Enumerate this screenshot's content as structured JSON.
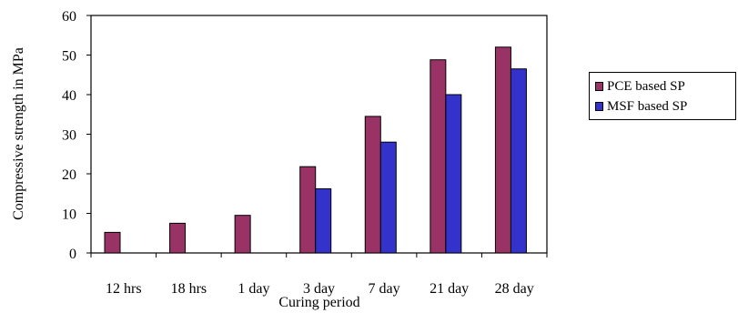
{
  "chart_data": {
    "type": "bar",
    "title": "",
    "xlabel": "Curing period",
    "ylabel": "Compressive strength in MPa",
    "ylim": [
      0,
      60
    ],
    "yticks": [
      "0",
      "10",
      "20",
      "30",
      "40",
      "50",
      "60"
    ],
    "categories": [
      "12 hrs",
      "18 hrs",
      "1 day",
      "3 day",
      "7 day",
      "21 day",
      "28 day"
    ],
    "series": [
      {
        "name": "PCE based SP",
        "color": "#993366",
        "values": [
          5.2,
          7.5,
          9.5,
          21.8,
          34.5,
          48.8,
          52.0
        ]
      },
      {
        "name": "MSF based SP",
        "color": "#3333cc",
        "values": [
          0,
          0,
          0,
          16.2,
          28.0,
          40.0,
          46.5
        ]
      }
    ],
    "legend": "right",
    "grid": false
  }
}
